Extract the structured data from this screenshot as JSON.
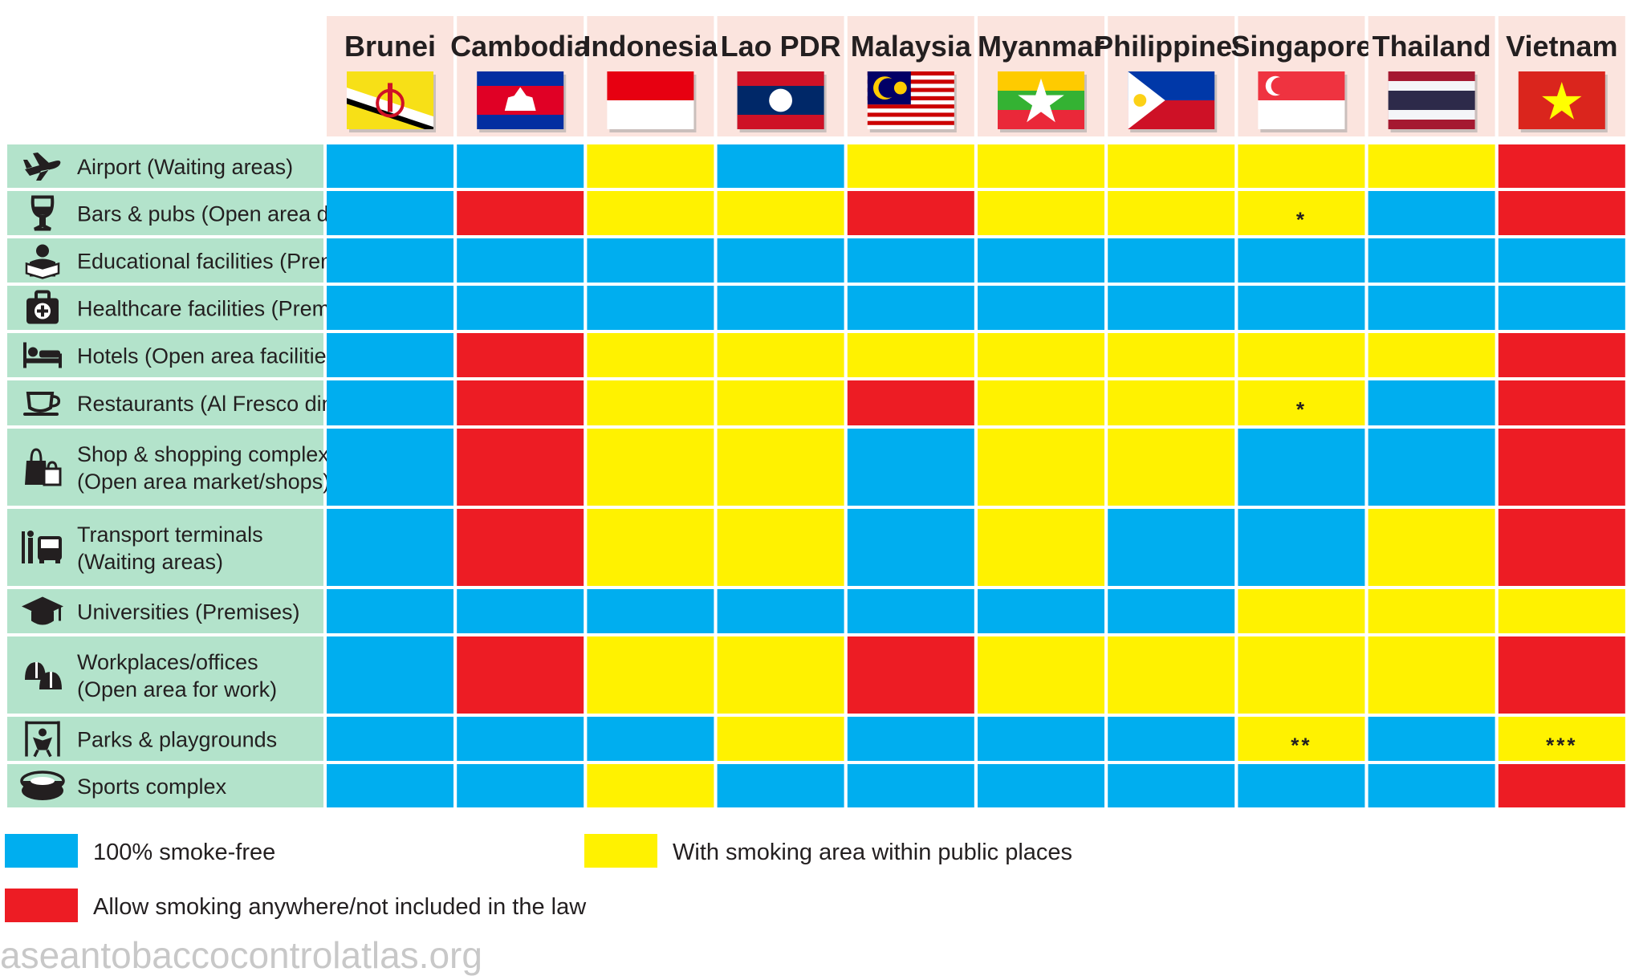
{
  "chart_data": {
    "type": "table",
    "title": "",
    "countries": [
      "Brunei",
      "Cambodia",
      "Indonesia",
      "Lao PDR",
      "Malaysia",
      "Myanmar",
      "Philippines",
      "Singapore",
      "Thailand",
      "Vietnam"
    ],
    "flag_icons": [
      "brunei-flag-icon",
      "cambodia-flag-icon",
      "indonesia-flag-icon",
      "laos-flag-icon",
      "malaysia-flag-icon",
      "myanmar-flag-icon",
      "philippines-flag-icon",
      "singapore-flag-icon",
      "thailand-flag-icon",
      "vietnam-flag-icon"
    ],
    "rows": [
      {
        "lines": [
          "Airport (Waiting areas)"
        ],
        "icon": "airplane-icon",
        "values": [
          "smoke_free",
          "smoke_free",
          "smoking_area",
          "smoke_free",
          "smoking_area",
          "smoking_area",
          "smoking_area",
          "smoking_area",
          "smoking_area",
          "allowed"
        ],
        "marks": [
          "",
          "",
          "",
          "",
          "",
          "",
          "",
          "",
          "",
          ""
        ]
      },
      {
        "lines": [
          "Bars & pubs (Open area dining)"
        ],
        "icon": "wine-glass-icon",
        "values": [
          "smoke_free",
          "allowed",
          "smoking_area",
          "smoking_area",
          "allowed",
          "smoking_area",
          "smoking_area",
          "smoking_area",
          "smoke_free",
          "allowed"
        ],
        "marks": [
          "",
          "",
          "",
          "",
          "",
          "",
          "",
          "*",
          "",
          ""
        ]
      },
      {
        "lines": [
          "Educational facilities (Premises)"
        ],
        "icon": "student-reading-icon",
        "values": [
          "smoke_free",
          "smoke_free",
          "smoke_free",
          "smoke_free",
          "smoke_free",
          "smoke_free",
          "smoke_free",
          "smoke_free",
          "smoke_free",
          "smoke_free"
        ],
        "marks": [
          "",
          "",
          "",
          "",
          "",
          "",
          "",
          "",
          "",
          ""
        ]
      },
      {
        "lines": [
          "Healthcare facilities (Premises)"
        ],
        "icon": "medical-kit-icon",
        "values": [
          "smoke_free",
          "smoke_free",
          "smoke_free",
          "smoke_free",
          "smoke_free",
          "smoke_free",
          "smoke_free",
          "smoke_free",
          "smoke_free",
          "smoke_free"
        ],
        "marks": [
          "",
          "",
          "",
          "",
          "",
          "",
          "",
          "",
          "",
          ""
        ]
      },
      {
        "lines": [
          "Hotels (Open area facilities)"
        ],
        "icon": "bed-icon",
        "values": [
          "smoke_free",
          "allowed",
          "smoking_area",
          "smoking_area",
          "smoking_area",
          "smoking_area",
          "smoking_area",
          "smoking_area",
          "smoking_area",
          "allowed"
        ],
        "marks": [
          "",
          "",
          "",
          "",
          "",
          "",
          "",
          "",
          "",
          ""
        ]
      },
      {
        "lines": [
          "Restaurants (Al Fresco dining)"
        ],
        "icon": "coffee-cup-icon",
        "values": [
          "smoke_free",
          "allowed",
          "smoking_area",
          "smoking_area",
          "allowed",
          "smoking_area",
          "smoking_area",
          "smoking_area",
          "smoke_free",
          "allowed"
        ],
        "marks": [
          "",
          "",
          "",
          "",
          "",
          "",
          "",
          "*",
          "",
          ""
        ]
      },
      {
        "lines": [
          "Shop & shopping complex",
          "(Open area market/shops)"
        ],
        "icon": "shopping-bags-icon",
        "values": [
          "smoke_free",
          "allowed",
          "smoking_area",
          "smoking_area",
          "smoke_free",
          "smoking_area",
          "smoking_area",
          "smoke_free",
          "smoke_free",
          "allowed"
        ],
        "marks": [
          "",
          "",
          "",
          "",
          "",
          "",
          "",
          "",
          "",
          ""
        ]
      },
      {
        "lines": [
          "Transport terminals",
          "(Waiting areas)"
        ],
        "icon": "bus-terminal-icon",
        "values": [
          "smoke_free",
          "allowed",
          "smoking_area",
          "smoking_area",
          "smoke_free",
          "smoking_area",
          "smoke_free",
          "smoke_free",
          "smoking_area",
          "allowed"
        ],
        "marks": [
          "",
          "",
          "",
          "",
          "",
          "",
          "",
          "",
          "",
          ""
        ]
      },
      {
        "lines": [
          "Universities (Premises)"
        ],
        "icon": "graduation-cap-icon",
        "values": [
          "smoke_free",
          "smoke_free",
          "smoke_free",
          "smoke_free",
          "smoke_free",
          "smoke_free",
          "smoke_free",
          "smoking_area",
          "smoking_area",
          "smoking_area"
        ],
        "marks": [
          "",
          "",
          "",
          "",
          "",
          "",
          "",
          "",
          "",
          ""
        ]
      },
      {
        "lines": [
          "Workplaces/offices",
          "(Open area for work)"
        ],
        "icon": "hard-hats-icon",
        "values": [
          "smoke_free",
          "allowed",
          "smoking_area",
          "smoking_area",
          "allowed",
          "smoking_area",
          "smoking_area",
          "smoking_area",
          "smoking_area",
          "allowed"
        ],
        "marks": [
          "",
          "",
          "",
          "",
          "",
          "",
          "",
          "",
          "",
          ""
        ]
      },
      {
        "lines": [
          "Parks & playgrounds"
        ],
        "icon": "swing-icon",
        "values": [
          "smoke_free",
          "smoke_free",
          "smoke_free",
          "smoking_area",
          "smoke_free",
          "smoke_free",
          "smoke_free",
          "smoking_area",
          "smoke_free",
          "smoking_area"
        ],
        "marks": [
          "",
          "",
          "",
          "",
          "",
          "",
          "",
          "**",
          "",
          "***"
        ]
      },
      {
        "lines": [
          "Sports complex"
        ],
        "icon": "stadium-icon",
        "values": [
          "smoke_free",
          "smoke_free",
          "smoking_area",
          "smoke_free",
          "smoke_free",
          "smoke_free",
          "smoke_free",
          "smoke_free",
          "smoke_free",
          "allowed"
        ],
        "marks": [
          "",
          "",
          "",
          "",
          "",
          "",
          "",
          "",
          "",
          ""
        ]
      }
    ],
    "legend": [
      {
        "key": "smoke_free",
        "label": "100% smoke-free",
        "color": "#00aeef"
      },
      {
        "key": "smoking_area",
        "label": "With smoking area within public places",
        "color": "#fff200"
      },
      {
        "key": "allowed",
        "label": "Allow smoking anywhere/not included in the law",
        "color": "#ed1c24"
      }
    ],
    "colors": {
      "header_bg": "#fbe4de",
      "row_label_bg": "#b3e3cb",
      "text": "#231f20"
    }
  },
  "watermark": "aseantobaccocontrolatlas.org"
}
